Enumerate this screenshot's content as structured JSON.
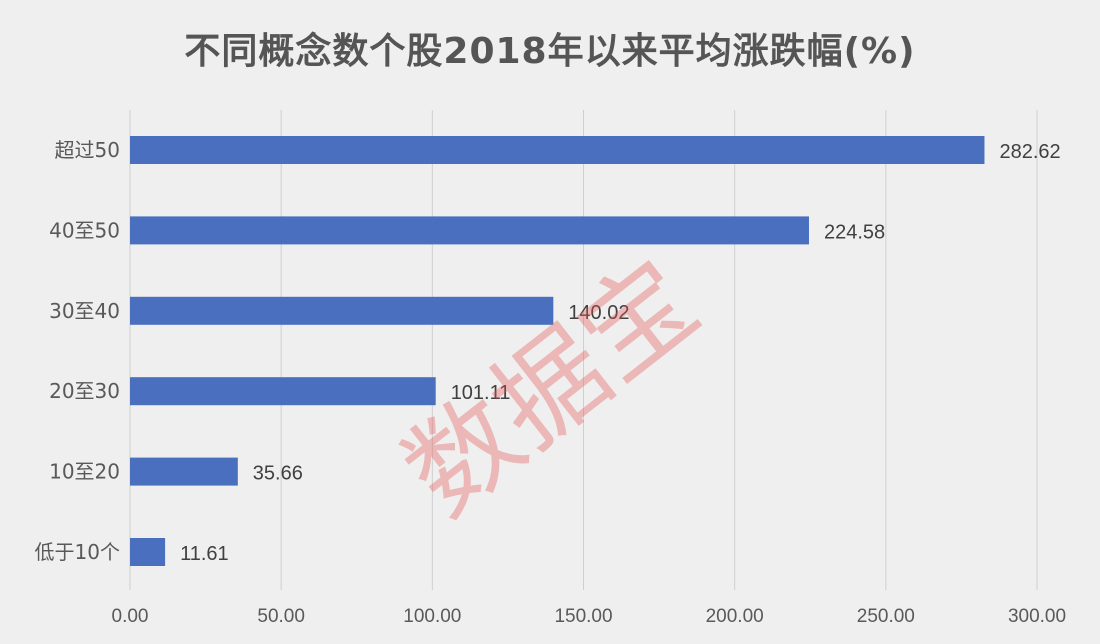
{
  "chart_data": {
    "type": "bar",
    "orientation": "horizontal",
    "title": "不同概念数个股2018年以来平均涨跌幅(%)",
    "categories": [
      "超过50",
      "40至50",
      "30至40",
      "20至30",
      "10至20",
      "低于10个"
    ],
    "values": [
      282.62,
      224.58,
      140.02,
      101.11,
      35.66,
      11.61
    ],
    "data_labels": [
      "282.62",
      "224.58",
      "140.02",
      "101.11",
      "35.66",
      "11.61"
    ],
    "xlim": [
      0,
      300
    ],
    "x_ticks": [
      "0.00",
      "50.00",
      "100.00",
      "150.00",
      "200.00",
      "250.00",
      "300.00"
    ],
    "grid": "vertical",
    "bar_color": "#4a6fbf",
    "xlabel": "",
    "ylabel": ""
  },
  "watermark": "数据宝"
}
